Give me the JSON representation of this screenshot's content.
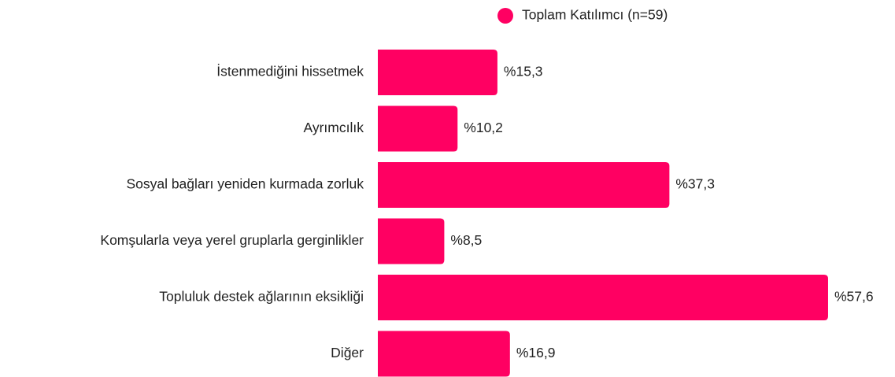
{
  "chart_data": {
    "type": "barh",
    "categories": [
      "İstenmediğini hissetmek",
      "Ayrımcılık",
      "Sosyal bağları yeniden kurmada zorluk",
      "Komşularla veya yerel gruplarla gerginlikler",
      "Topluluk destek ağlarının eksikliği",
      "Diğer"
    ],
    "series": [
      {
        "name": "Toplam Katılımcı (n=59)",
        "color": "#ff0062",
        "values": [
          15.3,
          10.2,
          37.3,
          8.5,
          57.6,
          16.9
        ],
        "value_labels": [
          "%15,3",
          "%10,2",
          "%37,3",
          "%8,5",
          "%57,6",
          "%16,9"
        ]
      }
    ],
    "legend": "top"
  }
}
